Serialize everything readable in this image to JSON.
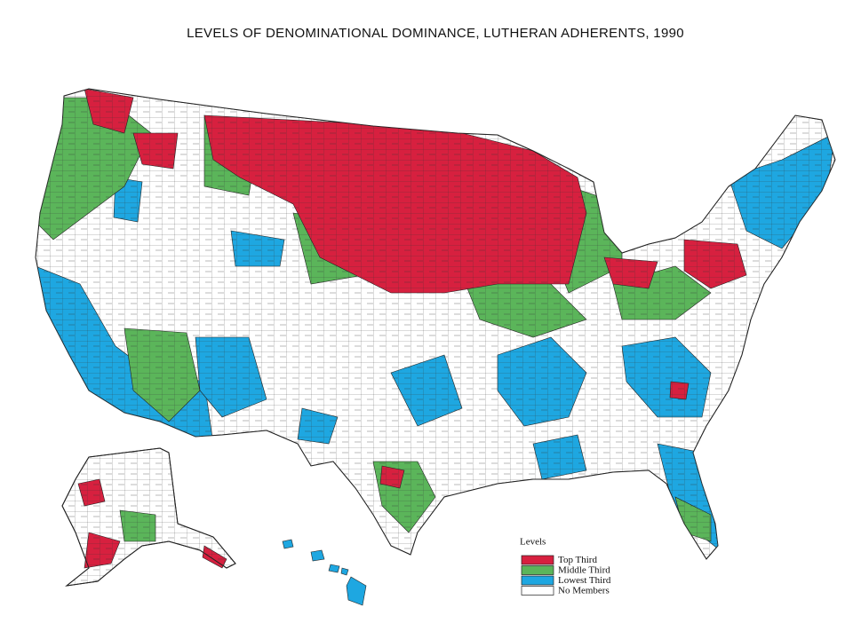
{
  "title": "LEVELS OF DENOMINATIONAL DOMINANCE, LUTHERAN ADHERENTS, 1990",
  "legend": {
    "title": "Levels",
    "items": [
      {
        "label": "Top Third",
        "color": "#d7203f"
      },
      {
        "label": "Middle Third",
        "color": "#5bb55a"
      },
      {
        "label": "Lowest Third",
        "color": "#1ea7e1"
      },
      {
        "label": "No Members",
        "color": "#ffffff"
      }
    ]
  }
}
